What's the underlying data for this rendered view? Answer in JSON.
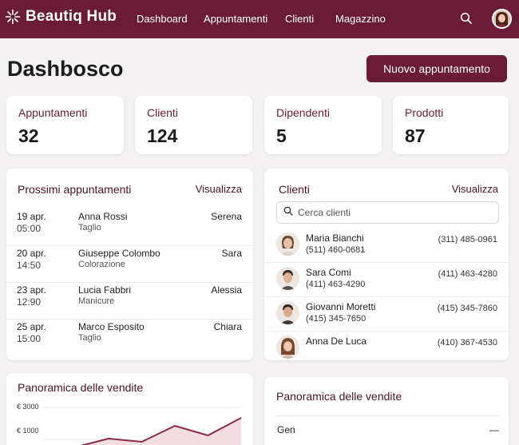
{
  "nav": {
    "brand": "Beautiq Hub",
    "links": [
      "Dashboard",
      "Appuntamenti",
      "Clienti",
      "Magazzino"
    ]
  },
  "page": {
    "title": "Dashbosco",
    "new_button": "Nuovo appuntamento"
  },
  "stats": [
    {
      "label": "Appuntamenti",
      "value": "32"
    },
    {
      "label": "Clienti",
      "value": "124"
    },
    {
      "label": "Dipendenti",
      "value": "5"
    },
    {
      "label": "Prodotti",
      "value": "87"
    }
  ],
  "appointments": {
    "title": "Prossimi appuntamenti",
    "link": "Visualizza",
    "rows": [
      {
        "date": "19 apr.",
        "time": "05:00",
        "client": "Anna Rossi",
        "service": "Taglio",
        "staff": "Serena"
      },
      {
        "date": "20 apr.",
        "time": "14:50",
        "client": "Giuseppe Colombo",
        "service": "Colorazione",
        "staff": "Sara"
      },
      {
        "date": "23 apr.",
        "time": "12:90",
        "client": "Lucia Fabbri",
        "service": "Manicure",
        "staff": "Alessia"
      },
      {
        "date": "25 apr.",
        "time": "15:00",
        "client": "Marco Esposito",
        "service": "Taglio",
        "staff": "Chiara"
      }
    ]
  },
  "clients": {
    "title": "Clienti",
    "link": "Visualizza",
    "search_placeholder": "Cerca clienti",
    "rows": [
      {
        "name": "Maria Bianchi",
        "phone2": "(511) 460-0681",
        "phone": "(311) 485-0961"
      },
      {
        "name": "Sara Comi",
        "phone2": "(411) 463-4290",
        "phone": "(411) 463-4280"
      },
      {
        "name": "Giovanni Moretti",
        "phone2": "(415) 345-7650",
        "phone": "(415) 345-7860"
      },
      {
        "name": "Anna De Luca",
        "phone2": "",
        "phone": "(410) 367-4530"
      }
    ]
  },
  "sales_chart": {
    "title": "Panoramica delle vendite"
  },
  "sales_table": {
    "title": "Panoramica delle vendite",
    "rows": [
      {
        "month": "Gen",
        "value": "—"
      }
    ]
  },
  "chart_data": {
    "type": "area",
    "title": "Panoramica delle vendite",
    "y_ticks": [
      "€ 3000",
      "€ 1000"
    ],
    "ylim": [
      0,
      3000
    ],
    "x": [
      0,
      1,
      2,
      3,
      4,
      5,
      6
    ],
    "values": [
      200,
      520,
      1050,
      850,
      1850,
      1250,
      2350
    ],
    "colors": {
      "line": "#8a2a48",
      "fill": "#f3dde2"
    }
  },
  "colors": {
    "brand": "#6a1b36",
    "background": "#f3f1f2",
    "card": "#ffffff"
  }
}
